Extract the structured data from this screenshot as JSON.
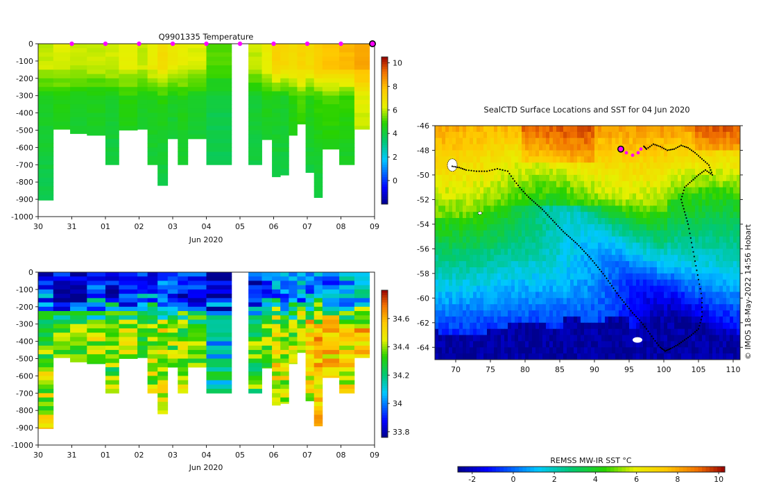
{
  "chart_data": [
    {
      "type": "heatmap",
      "id": "temperature-profile",
      "title": "Q9901335  Temperature",
      "xlabel": "Jun 2020",
      "ylabel": "",
      "x_ticks": [
        "30",
        "31",
        "01",
        "02",
        "03",
        "04",
        "05",
        "06",
        "07",
        "08",
        "09"
      ],
      "xlim": [
        0,
        10
      ],
      "y_ticks": [
        "0",
        "-100",
        "-200",
        "-300",
        "-400",
        "-500",
        "-600",
        "-700",
        "-800",
        "-900",
        "-1000"
      ],
      "ylim": [
        -1000,
        0
      ],
      "colorbar": {
        "ticks": [
          "0",
          "2",
          "4",
          "6",
          "8",
          "10"
        ],
        "range": [
          -2,
          10.5
        ]
      },
      "marker_days": [
        1,
        2,
        3,
        4,
        5,
        6,
        7,
        8,
        9
      ],
      "current_marker_day": 10,
      "profiles": [
        {
          "day": 0.0,
          "depth": 905,
          "surface": 6.0,
          "mid": 4.5,
          "deep": 3.6
        },
        {
          "day": 0.45,
          "depth": 495,
          "surface": 6.2,
          "mid": 4.6,
          "deep": 3.9
        },
        {
          "day": 0.95,
          "depth": 520,
          "surface": 6.1,
          "mid": 4.4,
          "deep": 3.8
        },
        {
          "day": 1.45,
          "depth": 530,
          "surface": 6.0,
          "mid": 4.5,
          "deep": 3.9
        },
        {
          "day": 2.0,
          "depth": 700,
          "surface": 6.1,
          "mid": 4.3,
          "deep": 3.6
        },
        {
          "day": 2.4,
          "depth": 500,
          "surface": 6.3,
          "mid": 4.7,
          "deep": 3.9
        },
        {
          "day": 2.95,
          "depth": 495,
          "surface": 6.0,
          "mid": 4.5,
          "deep": 3.8
        },
        {
          "day": 3.25,
          "depth": 700,
          "surface": 6.4,
          "mid": 4.6,
          "deep": 3.7
        },
        {
          "day": 3.55,
          "depth": 820,
          "surface": 7.0,
          "mid": 4.8,
          "deep": 3.5
        },
        {
          "day": 3.85,
          "depth": 550,
          "surface": 6.5,
          "mid": 4.4,
          "deep": 3.6
        },
        {
          "day": 4.15,
          "depth": 700,
          "surface": 6.3,
          "mid": 4.6,
          "deep": 3.8
        },
        {
          "day": 4.45,
          "depth": 550,
          "surface": 6.2,
          "mid": 4.3,
          "deep": 3.7
        },
        {
          "day": 5.0,
          "depth": 700,
          "surface": 5.2,
          "mid": 3.9,
          "deep": 3.7
        },
        {
          "day": 6.25,
          "depth": 700,
          "surface": 6.0,
          "mid": 4.2,
          "deep": 3.8
        },
        {
          "day": 6.65,
          "depth": 555,
          "surface": 6.4,
          "mid": 4.6,
          "deep": 3.8
        },
        {
          "day": 6.95,
          "depth": 770,
          "surface": 7.4,
          "mid": 4.5,
          "deep": 3.6
        },
        {
          "day": 7.2,
          "depth": 760,
          "surface": 7.2,
          "mid": 4.4,
          "deep": 3.7
        },
        {
          "day": 7.45,
          "depth": 530,
          "surface": 7.0,
          "mid": 4.8,
          "deep": 3.8
        },
        {
          "day": 7.7,
          "depth": 465,
          "surface": 7.3,
          "mid": 5.2,
          "deep": 4.0
        },
        {
          "day": 7.95,
          "depth": 745,
          "surface": 7.1,
          "mid": 4.7,
          "deep": 3.6
        },
        {
          "day": 8.2,
          "depth": 890,
          "surface": 7.5,
          "mid": 5.0,
          "deep": 3.6
        },
        {
          "day": 8.45,
          "depth": 610,
          "surface": 7.8,
          "mid": 5.1,
          "deep": 3.8
        },
        {
          "day": 8.95,
          "depth": 700,
          "surface": 8.0,
          "mid": 5.0,
          "deep": 3.7
        },
        {
          "day": 9.4,
          "depth": 495,
          "surface": 8.3,
          "mid": 6.3,
          "deep": 5.0
        }
      ]
    },
    {
      "type": "heatmap",
      "id": "salinity-profile",
      "title": "",
      "xlabel": "Jun 2020",
      "ylabel": "",
      "x_ticks": [
        "30",
        "31",
        "01",
        "02",
        "03",
        "04",
        "05",
        "06",
        "07",
        "08",
        "09"
      ],
      "xlim": [
        0,
        10
      ],
      "y_ticks": [
        "0",
        "-100",
        "-200",
        "-300",
        "-400",
        "-500",
        "-600",
        "-700",
        "-800",
        "-900",
        "-1000"
      ],
      "ylim": [
        -1000,
        0
      ],
      "colorbar": {
        "ticks": [
          "33.8",
          "34",
          "34.2",
          "34.4",
          "34.6"
        ],
        "range": [
          33.76,
          34.8
        ]
      },
      "profiles": [
        {
          "day": 0.0,
          "depth": 905,
          "surface": 33.9,
          "mid": 34.32,
          "deep": 34.5
        },
        {
          "day": 0.45,
          "depth": 495,
          "surface": 33.85,
          "mid": 34.3,
          "deep": 34.34
        },
        {
          "day": 0.95,
          "depth": 520,
          "surface": 33.88,
          "mid": 34.36,
          "deep": 34.33
        },
        {
          "day": 1.45,
          "depth": 530,
          "surface": 33.9,
          "mid": 34.4,
          "deep": 34.32
        },
        {
          "day": 2.0,
          "depth": 700,
          "surface": 33.88,
          "mid": 34.34,
          "deep": 34.33
        },
        {
          "day": 2.4,
          "depth": 500,
          "surface": 33.92,
          "mid": 34.38,
          "deep": 34.32
        },
        {
          "day": 2.95,
          "depth": 495,
          "surface": 33.95,
          "mid": 34.36,
          "deep": 34.33
        },
        {
          "day": 3.25,
          "depth": 700,
          "surface": 33.9,
          "mid": 34.42,
          "deep": 34.4
        },
        {
          "day": 3.55,
          "depth": 820,
          "surface": 33.95,
          "mid": 34.46,
          "deep": 34.45
        },
        {
          "day": 3.85,
          "depth": 550,
          "surface": 33.9,
          "mid": 34.38,
          "deep": 34.33
        },
        {
          "day": 4.15,
          "depth": 700,
          "surface": 33.88,
          "mid": 34.36,
          "deep": 34.38
        },
        {
          "day": 4.45,
          "depth": 550,
          "surface": 33.92,
          "mid": 34.3,
          "deep": 34.33
        },
        {
          "day": 5.0,
          "depth": 700,
          "surface": 33.85,
          "mid": 34.05,
          "deep": 34.36
        },
        {
          "day": 6.25,
          "depth": 700,
          "surface": 33.88,
          "mid": 34.3,
          "deep": 34.35
        },
        {
          "day": 6.65,
          "depth": 555,
          "surface": 33.95,
          "mid": 34.4,
          "deep": 34.33
        },
        {
          "day": 6.95,
          "depth": 770,
          "surface": 34.05,
          "mid": 34.5,
          "deep": 34.4
        },
        {
          "day": 7.2,
          "depth": 760,
          "surface": 34.0,
          "mid": 34.45,
          "deep": 34.42
        },
        {
          "day": 7.45,
          "depth": 530,
          "surface": 34.0,
          "mid": 34.4,
          "deep": 34.34
        },
        {
          "day": 7.7,
          "depth": 465,
          "surface": 34.05,
          "mid": 34.48,
          "deep": 34.35
        },
        {
          "day": 7.95,
          "depth": 745,
          "surface": 34.02,
          "mid": 34.55,
          "deep": 34.42
        },
        {
          "day": 8.2,
          "depth": 890,
          "surface": 34.05,
          "mid": 34.6,
          "deep": 34.48
        },
        {
          "day": 8.45,
          "depth": 610,
          "surface": 34.0,
          "mid": 34.58,
          "deep": 34.4
        },
        {
          "day": 8.95,
          "depth": 700,
          "surface": 34.05,
          "mid": 34.55,
          "deep": 34.36
        },
        {
          "day": 9.4,
          "depth": 495,
          "surface": 34.1,
          "mid": 34.55,
          "deep": 34.45
        }
      ]
    },
    {
      "type": "heatmap",
      "id": "sst-map",
      "title": "SealCTD Surface Locations and SST for 04 Jun 2020",
      "xlabel": "",
      "ylabel": "",
      "x_ticks": [
        "70",
        "75",
        "80",
        "85",
        "90",
        "95",
        "100",
        "105",
        "110"
      ],
      "xlim": [
        67,
        111
      ],
      "y_ticks": [
        "-46",
        "-48",
        "-50",
        "-52",
        "-54",
        "-56",
        "-58",
        "-60",
        "-62",
        "-64"
      ],
      "ylim": [
        -65,
        -46
      ],
      "colorbar_label": "REMSS MW-IR SST °C",
      "colorbar": {
        "ticks": [
          "-2",
          "0",
          "2",
          "4",
          "6",
          "8",
          "10"
        ],
        "range": [
          -2.7,
          10.3
        ]
      },
      "sst_model": {
        "front_lat": -52.5,
        "warm_north_c": 8.2,
        "cold_south_c": -1.8,
        "ice_edge_lat": -62.3
      },
      "track_lon": [
        69.5,
        70.5,
        71.5,
        73,
        74.5,
        76,
        77.5,
        78.5,
        79.5,
        80.5,
        81.5,
        82.5,
        83.5,
        84.5,
        85.5,
        86.5,
        87.5,
        88.5,
        89.5,
        90.5,
        91.5,
        92.5,
        93.5,
        94.5,
        95.5,
        96.5,
        97.5,
        98.5,
        99.5,
        100.2,
        101,
        102,
        103,
        104,
        105,
        105.5,
        105.5,
        105,
        104.5,
        104,
        103.5,
        103,
        102.5,
        103,
        104,
        105,
        106,
        107,
        106.5,
        105.5,
        104.5,
        103.5,
        102.5,
        101.5,
        100.5,
        99.5,
        98.5,
        97.5,
        97
      ],
      "track_lat": [
        -49.3,
        -49.4,
        -49.6,
        -49.7,
        -49.7,
        -49.5,
        -49.7,
        -50.5,
        -51.2,
        -51.8,
        -52.3,
        -52.8,
        -53.4,
        -54.0,
        -54.6,
        -55.1,
        -55.6,
        -56.2,
        -56.8,
        -57.5,
        -58.2,
        -59.0,
        -59.8,
        -60.5,
        -61.2,
        -61.8,
        -62.5,
        -63.3,
        -64.0,
        -64.3,
        -64.1,
        -63.8,
        -63.4,
        -63.0,
        -62.5,
        -61.5,
        -60.0,
        -58.5,
        -57.0,
        -55.5,
        -54.0,
        -53.0,
        -52.0,
        -51.0,
        -50.5,
        -50.0,
        -49.6,
        -50.0,
        -49.2,
        -48.7,
        -48.2,
        -47.8,
        -47.6,
        -47.9,
        -48.0,
        -47.7,
        -47.5,
        -47.9,
        -47.6
      ],
      "current_position": {
        "lon": 93.8,
        "lat": -47.9
      },
      "recent_positions_lon": [
        94.6,
        95.5,
        96.3,
        96.7
      ],
      "recent_positions_lat": [
        -48.2,
        -48.4,
        -48.2,
        -47.9
      ],
      "islands": [
        {
          "name_hidden": "",
          "lon": 69.5,
          "lat": -49.2
        },
        {
          "name_hidden": "",
          "lon": 73.5,
          "lat": -53.1
        },
        {
          "name_hidden": "",
          "lon": 96.2,
          "lat": -63.4
        }
      ]
    }
  ],
  "credit": "© IMOS 18-May-2022 14:56 Hobart",
  "colors": {
    "current_marker": "#ff00ff",
    "track": "#000000",
    "axis": "#222222",
    "background": "#ffffff"
  }
}
